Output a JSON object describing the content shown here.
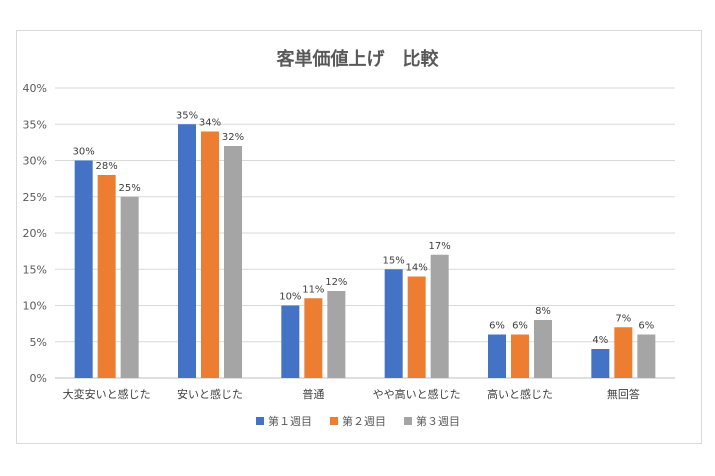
{
  "chart_data": {
    "type": "bar",
    "title": "客単価値上げ　比較",
    "categories": [
      "大変安いと感じた",
      "安いと感じた",
      "普通",
      "やや高いと感じた",
      "高いと感じた",
      "無回答"
    ],
    "series": [
      {
        "name": "第１週目",
        "color": "#4472c4",
        "values": [
          30,
          35,
          10,
          15,
          6,
          4
        ]
      },
      {
        "name": "第２週目",
        "color": "#ed7d31",
        "values": [
          28,
          34,
          11,
          14,
          6,
          7
        ]
      },
      {
        "name": "第３週目",
        "color": "#a5a5a5",
        "values": [
          25,
          32,
          12,
          17,
          8,
          6
        ]
      }
    ],
    "ylim": [
      0,
      40
    ],
    "yticks": [
      0,
      5,
      10,
      15,
      20,
      25,
      30,
      35,
      40
    ],
    "value_suffix": "%",
    "grid": true,
    "legend_position": "bottom"
  }
}
